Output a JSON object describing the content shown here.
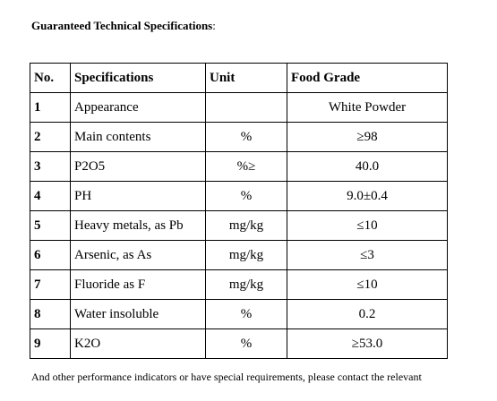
{
  "heading": {
    "title": "Guaranteed Technical Specifications",
    "colon": ":"
  },
  "table": {
    "headers": {
      "no": "No.",
      "spec": "Specifications",
      "unit": "Unit",
      "grade": "Food Grade"
    },
    "rows": [
      {
        "no": "1",
        "spec": "Appearance",
        "unit": "",
        "grade": "White Powder"
      },
      {
        "no": "2",
        "spec": "Main contents",
        "unit": "%",
        "grade": "≥98"
      },
      {
        "no": "3",
        "spec": "P2O5",
        "unit": "%≥",
        "grade": "40.0"
      },
      {
        "no": "4",
        "spec": "PH",
        "unit": "%",
        "grade": "9.0±0.4"
      },
      {
        "no": "5",
        "spec": "Heavy metals, as Pb",
        "unit": "mg/kg",
        "grade": "≤10"
      },
      {
        "no": "6",
        "spec": "Arsenic, as As",
        "unit": "mg/kg",
        "grade": "≤3"
      },
      {
        "no": "7",
        "spec": "Fluoride as F",
        "unit": "mg/kg",
        "grade": "≤10"
      },
      {
        "no": "8",
        "spec": "Water insoluble",
        "unit": "%",
        "grade": "0.2"
      },
      {
        "no": "9",
        "spec": "K2O",
        "unit": "%",
        "grade": "≥53.0"
      }
    ]
  },
  "footnote": "And other performance indicators or have special requirements, please contact the relevant"
}
